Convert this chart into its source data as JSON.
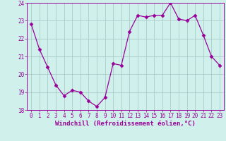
{
  "x": [
    0,
    1,
    2,
    3,
    4,
    5,
    6,
    7,
    8,
    9,
    10,
    11,
    12,
    13,
    14,
    15,
    16,
    17,
    18,
    19,
    20,
    21,
    22,
    23
  ],
  "y": [
    22.8,
    21.4,
    20.4,
    19.4,
    18.8,
    19.1,
    19.0,
    18.5,
    18.2,
    18.7,
    20.6,
    20.5,
    22.4,
    23.3,
    23.2,
    23.3,
    23.3,
    24.0,
    23.1,
    23.0,
    23.3,
    22.2,
    21.0,
    20.5
  ],
  "line_color": "#990099",
  "marker": "D",
  "marker_size": 2.5,
  "bg_color": "#cff0eb",
  "grid_color": "#aaccc8",
  "xlabel": "Windchill (Refroidissement éolien,°C)",
  "ylabel": "",
  "ylim": [
    18,
    24
  ],
  "xlim": [
    -0.5,
    23.5
  ],
  "yticks": [
    18,
    19,
    20,
    21,
    22,
    23,
    24
  ],
  "xticks": [
    0,
    1,
    2,
    3,
    4,
    5,
    6,
    7,
    8,
    9,
    10,
    11,
    12,
    13,
    14,
    15,
    16,
    17,
    18,
    19,
    20,
    21,
    22,
    23
  ],
  "font_color": "#990099",
  "tick_label_size": 5.5,
  "xlabel_size": 6.5,
  "lw": 0.9
}
